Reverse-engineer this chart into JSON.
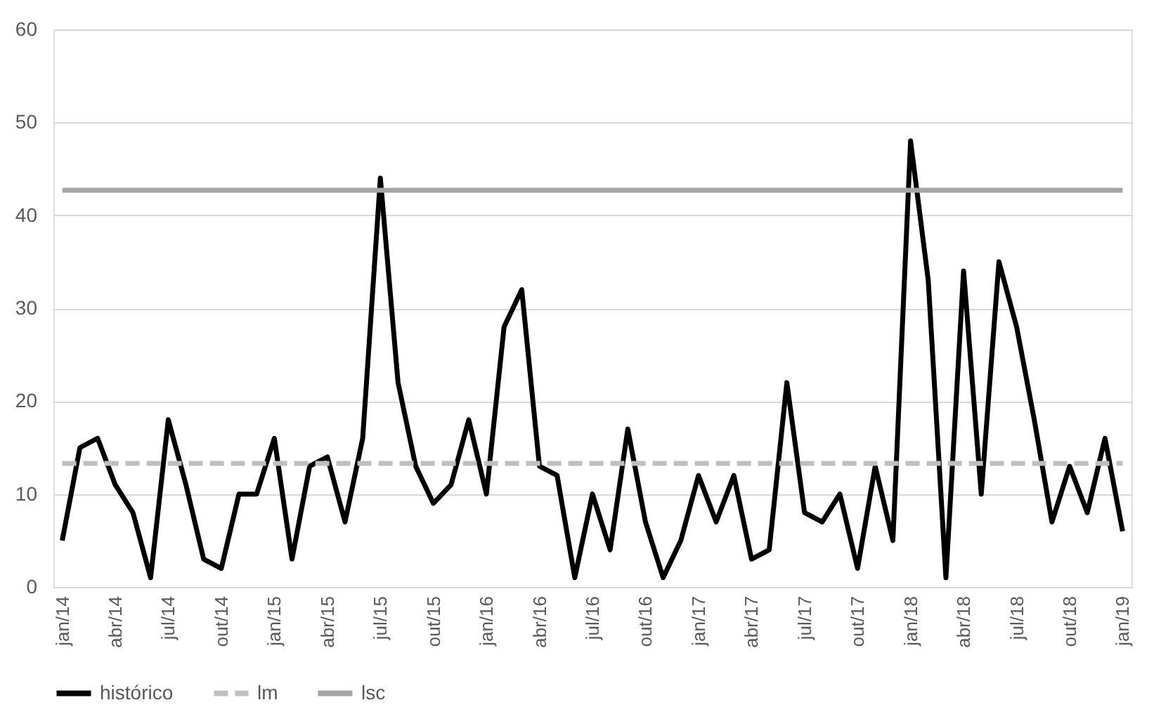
{
  "chart_data": {
    "type": "line",
    "categories": [
      "jan/14",
      null,
      null,
      "abr/14",
      null,
      null,
      "jul/14",
      null,
      null,
      "out/14",
      null,
      null,
      "jan/15",
      null,
      null,
      "abr/15",
      null,
      null,
      "jul/15",
      null,
      null,
      "out/15",
      null,
      null,
      "jan/16",
      null,
      null,
      "abr/16",
      null,
      null,
      "jul/16",
      null,
      null,
      "out/16",
      null,
      null,
      "jan/17",
      null,
      null,
      "abr/17",
      null,
      null,
      "jul/17",
      null,
      null,
      "out/17",
      null,
      null,
      "jan/18",
      null,
      null,
      "abr/18",
      null,
      null,
      "jul/18",
      null,
      null,
      "out/18",
      null,
      null,
      "jan/19"
    ],
    "series": [
      {
        "name": "histórico",
        "color": "#000000",
        "line_style": "solid",
        "values": [
          5,
          15,
          16,
          11,
          8,
          1,
          18,
          11,
          3,
          2,
          10,
          10,
          16,
          3,
          13,
          14,
          7,
          16,
          44,
          22,
          13,
          9,
          11,
          18,
          10,
          28,
          32,
          13,
          12,
          1,
          10,
          4,
          17,
          7,
          1,
          5,
          12,
          7,
          12,
          3,
          4,
          22,
          8,
          7,
          10,
          2,
          13,
          5,
          48,
          33,
          1,
          34,
          10,
          35,
          28,
          18,
          7,
          13,
          8,
          16,
          6
        ]
      },
      {
        "name": "lm",
        "color": "#bfbfbf",
        "line_style": "dashed",
        "values": [
          13.3,
          13.3,
          13.3,
          13.3,
          13.3,
          13.3,
          13.3,
          13.3,
          13.3,
          13.3,
          13.3,
          13.3,
          13.3,
          13.3,
          13.3,
          13.3,
          13.3,
          13.3,
          13.3,
          13.3,
          13.3,
          13.3,
          13.3,
          13.3,
          13.3,
          13.3,
          13.3,
          13.3,
          13.3,
          13.3,
          13.3,
          13.3,
          13.3,
          13.3,
          13.3,
          13.3,
          13.3,
          13.3,
          13.3,
          13.3,
          13.3,
          13.3,
          13.3,
          13.3,
          13.3,
          13.3,
          13.3,
          13.3,
          13.3,
          13.3,
          13.3,
          13.3,
          13.3,
          13.3,
          13.3,
          13.3,
          13.3,
          13.3,
          13.3,
          13.3,
          13.3
        ]
      },
      {
        "name": "lsc",
        "color": "#a5a5a5",
        "line_style": "solid",
        "values": [
          42.7,
          42.7,
          42.7,
          42.7,
          42.7,
          42.7,
          42.7,
          42.7,
          42.7,
          42.7,
          42.7,
          42.7,
          42.7,
          42.7,
          42.7,
          42.7,
          42.7,
          42.7,
          42.7,
          42.7,
          42.7,
          42.7,
          42.7,
          42.7,
          42.7,
          42.7,
          42.7,
          42.7,
          42.7,
          42.7,
          42.7,
          42.7,
          42.7,
          42.7,
          42.7,
          42.7,
          42.7,
          42.7,
          42.7,
          42.7,
          42.7,
          42.7,
          42.7,
          42.7,
          42.7,
          42.7,
          42.7,
          42.7,
          42.7,
          42.7,
          42.7,
          42.7,
          42.7,
          42.7,
          42.7,
          42.7,
          42.7,
          42.7,
          42.7,
          42.7,
          42.7
        ]
      }
    ],
    "ylim": [
      0,
      60
    ],
    "yticks": [
      0,
      10,
      20,
      30,
      40,
      50,
      60
    ],
    "grid": "y",
    "legend": "bottom"
  }
}
